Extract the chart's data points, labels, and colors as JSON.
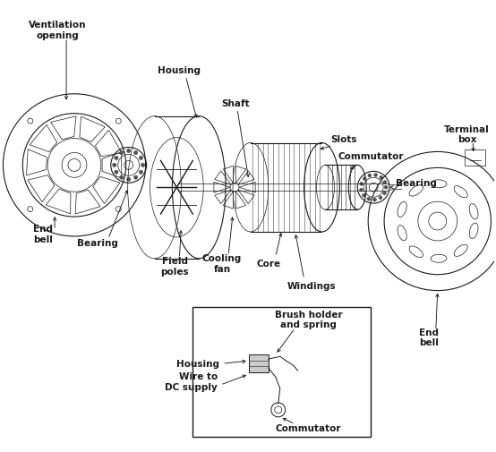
{
  "bg_color": "#ffffff",
  "line_color": "#1a1a1a",
  "label_color": "#1a1a1a",
  "labels": {
    "ventilation_opening": "Ventilation\nopening",
    "end_bell_left": "End\nbell",
    "bearing_left": "Bearing",
    "housing": "Housing",
    "field_poles": "Field\npoles",
    "shaft": "Shaft",
    "cooling_fan": "Cooling\nfan",
    "core": "Core",
    "windings": "Windings",
    "slots": "Slots",
    "commutator": "Commutator",
    "bearing_right": "Bearing",
    "terminal_box": "Terminal\nbox",
    "end_bell_right": "End\nbell",
    "brush_holder": "Brush holder\nand spring",
    "housing_inset": "Housing",
    "wire_dc": "Wire to\nDC supply",
    "commutator_inset": "Commutator"
  },
  "figsize": [
    5.54,
    5.06
  ],
  "dpi": 100
}
